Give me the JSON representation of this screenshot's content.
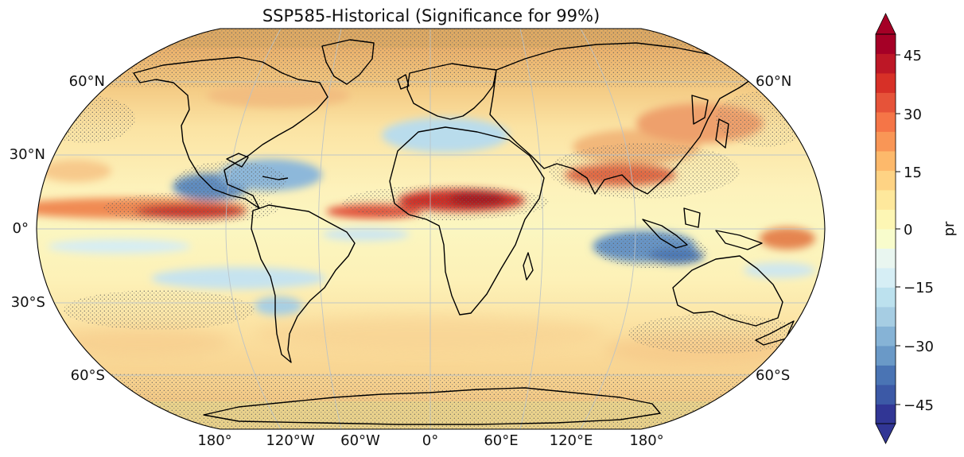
{
  "title": "SSP585-Historical (Significance for 99%)",
  "map": {
    "projection": "Robinson",
    "variable": "pr",
    "lat_labels_left": [
      "60°N",
      "30°N",
      "0°",
      "30°S",
      "60°S"
    ],
    "lat_labels_right": [
      "60°N",
      "60°S"
    ],
    "lon_labels": [
      "180°",
      "120°W",
      "60°W",
      "0°",
      "60°E",
      "120°E",
      "180°"
    ],
    "significance_hatching": true
  },
  "colorbar": {
    "label": "pr",
    "range": [
      -50,
      50
    ],
    "step": 5,
    "extend": "both",
    "tick_labels": [
      "45",
      "30",
      "15",
      "0",
      "−15",
      "−30",
      "−45"
    ],
    "colors": [
      "#313695",
      "#3c59a6",
      "#4a74b4",
      "#6a99c7",
      "#86b3d6",
      "#a6cde3",
      "#bce1ee",
      "#d6eef5",
      "#e9f6f0",
      "#f8fccc",
      "#fdf6b4",
      "#fee89c",
      "#fed384",
      "#fdb96b",
      "#f99656",
      "#f57547",
      "#e65339",
      "#d73027",
      "#bd1726",
      "#a50026"
    ]
  }
}
